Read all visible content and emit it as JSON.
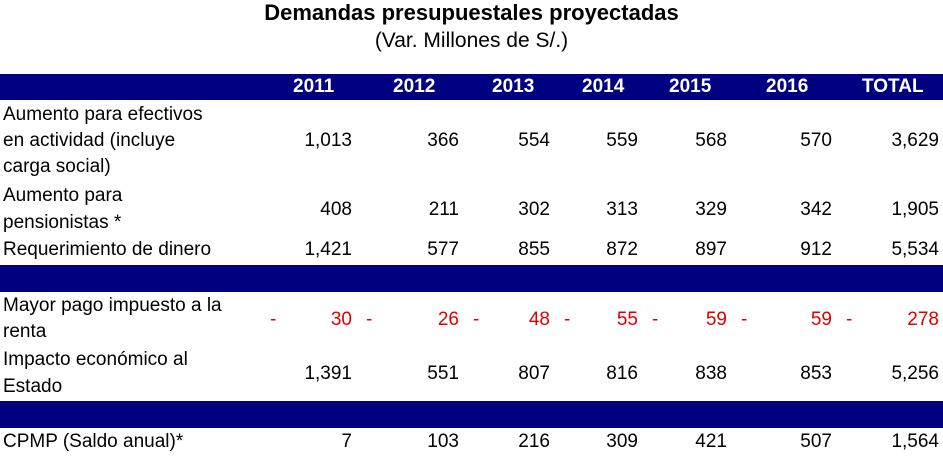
{
  "title": "Demandas presupuestales proyectadas",
  "subtitle": "(Var. Millones de S/.)",
  "columns": [
    "2011",
    "2012",
    "2013",
    "2014",
    "2015",
    "2016",
    "TOTAL"
  ],
  "rows": [
    {
      "label": "Aumento para efectivos en actividad (incluye carga social)",
      "label_lines": [
        "Aumento para efectivos",
        "en actividad (incluye",
        "carga social)"
      ],
      "values": [
        "1,013",
        "366",
        "554",
        "559",
        "568",
        "570",
        "3,629"
      ]
    },
    {
      "label": "Aumento para pensionistas *",
      "label_lines": [
        "Aumento para",
        "pensionistas *"
      ],
      "values": [
        "408",
        "211",
        "302",
        "313",
        "329",
        "342",
        "1,905"
      ]
    },
    {
      "label": "Requerimiento de dinero",
      "label_lines": [
        "Requerimiento de dinero"
      ],
      "values": [
        "1,421",
        "577",
        "855",
        "872",
        "897",
        "912",
        "5,534"
      ]
    },
    {
      "label": "Mayor pago impuesto a la renta",
      "label_lines": [
        "Mayor pago impuesto a la",
        "renta"
      ],
      "values": [
        "30",
        "26",
        "48",
        "55",
        "59",
        "59",
        "278"
      ],
      "sign": "-"
    },
    {
      "label": "Impacto económico al Estado",
      "label_lines": [
        "Impacto económico al",
        "Estado"
      ],
      "values": [
        "1,391",
        "551",
        "807",
        "816",
        "838",
        "853",
        "5,256"
      ]
    },
    {
      "label": "CPMP (Saldo anual)*",
      "label_lines": [
        "CPMP (Saldo anual)*"
      ],
      "values": [
        "7",
        "103",
        "216",
        "309",
        "421",
        "507",
        "1,564"
      ]
    }
  ],
  "colors": {
    "header_band": "#000080",
    "negative_text": "#e00000"
  }
}
